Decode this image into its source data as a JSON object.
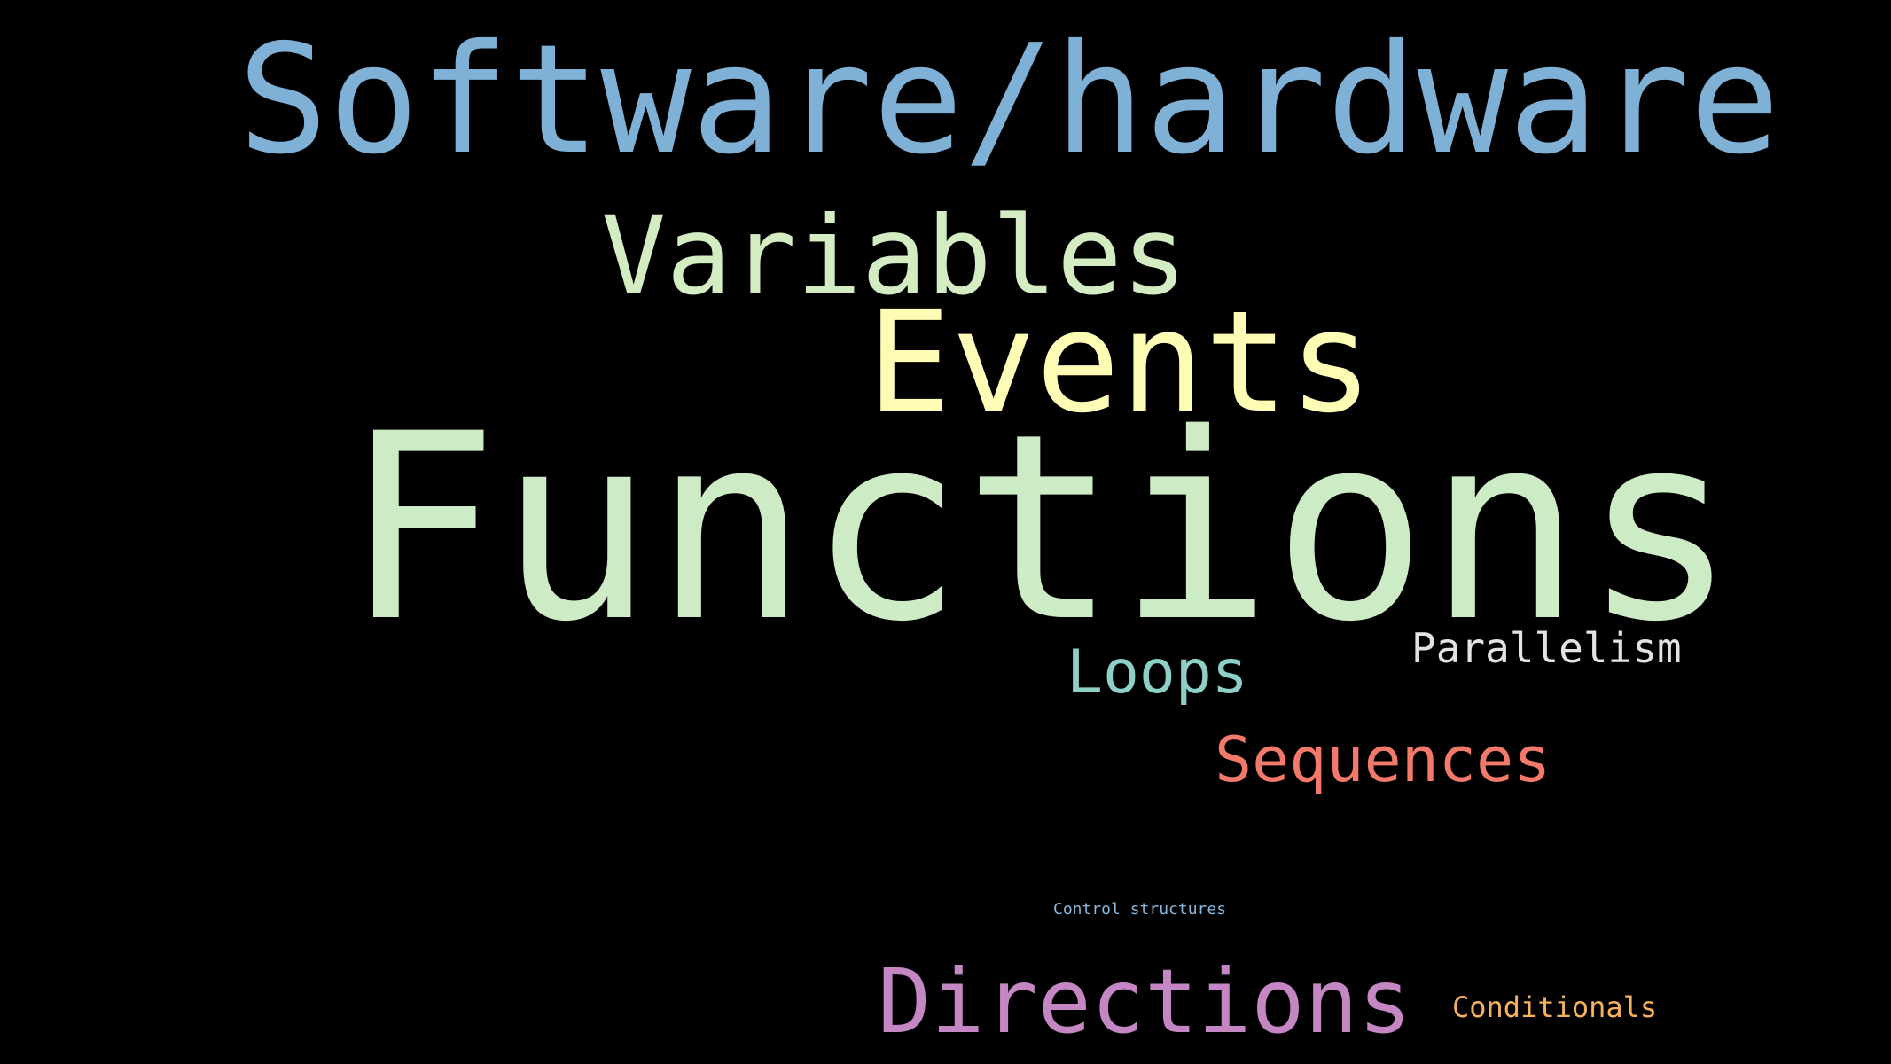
{
  "background_color": "#000000",
  "words": {
    "software_hardware": {
      "text": "Software/hardware",
      "color": "#7fb0d6"
    },
    "variables": {
      "text": "Variables",
      "color": "#d3ecc2"
    },
    "events": {
      "text": "Events",
      "color": "#fffdb5"
    },
    "functions": {
      "text": "Functions",
      "color": "#cdebc5"
    },
    "parallelism": {
      "text": "Parallelism",
      "color": "#e3e3e3"
    },
    "loops": {
      "text": "Loops",
      "color": "#8ecfc8"
    },
    "sequences": {
      "text": "Sequences",
      "color": "#f37a6b"
    },
    "control_structures": {
      "text": "Control structures",
      "color": "#86b7dc"
    },
    "directions": {
      "text": "Directions",
      "color": "#c487c4"
    },
    "conditionals": {
      "text": "Conditionals",
      "color": "#f6b15e"
    }
  }
}
